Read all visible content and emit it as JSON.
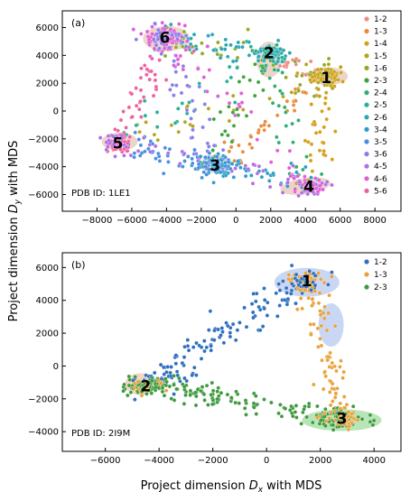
{
  "chart_data": [
    {
      "type": "scatter",
      "panel_label": "(a)",
      "annotation": "PDB ID: 1LE1",
      "xlim": [
        -10000,
        9500
      ],
      "ylim": [
        -7200,
        7200
      ],
      "xticks": [
        -8000,
        -6000,
        -4000,
        -2000,
        0,
        2000,
        4000,
        6000,
        8000
      ],
      "yticks": [
        -6000,
        -4000,
        -2000,
        0,
        2000,
        4000,
        6000
      ],
      "xtick_labels": [
        "−8000",
        "−6000",
        "−4000",
        "−2000",
        "0",
        "2000",
        "4000",
        "6000",
        "8000"
      ],
      "ytick_labels": [
        "−6000",
        "−4000",
        "−2000",
        "0",
        "2000",
        "4000",
        "6000"
      ],
      "grid": false,
      "legend_position": "right",
      "series": [
        {
          "name": "1-2",
          "color": "#f08a8a"
        },
        {
          "name": "1-3",
          "color": "#e98b3a"
        },
        {
          "name": "1-4",
          "color": "#d4a017"
        },
        {
          "name": "1-5",
          "color": "#b5a51d"
        },
        {
          "name": "1-6",
          "color": "#8fac22"
        },
        {
          "name": "2-3",
          "color": "#3aa63a"
        },
        {
          "name": "2-4",
          "color": "#2fae6f"
        },
        {
          "name": "2-5",
          "color": "#29b09a"
        },
        {
          "name": "2-6",
          "color": "#2aa8b5"
        },
        {
          "name": "3-4",
          "color": "#2c9ec9"
        },
        {
          "name": "3-5",
          "color": "#4a8fe0"
        },
        {
          "name": "3-6",
          "color": "#8b7ee8"
        },
        {
          "name": "4-5",
          "color": "#b36ee6"
        },
        {
          "name": "4-6",
          "color": "#e05fd6"
        },
        {
          "name": "5-6",
          "color": "#f0609e"
        }
      ],
      "clusters": [
        {
          "label": "1",
          "x": 5200,
          "y": 2400
        },
        {
          "label": "2",
          "x": 1900,
          "y": 4200
        },
        {
          "label": "3",
          "x": -1200,
          "y": -3900
        },
        {
          "label": "4",
          "x": 4200,
          "y": -5400
        },
        {
          "label": "5",
          "x": -6800,
          "y": -2300
        },
        {
          "label": "6",
          "x": -4100,
          "y": 5300
        }
      ]
    },
    {
      "type": "scatter",
      "panel_label": "(b)",
      "annotation": "PDB ID: 2I9M",
      "xlim": [
        -7600,
        5000
      ],
      "ylim": [
        -5200,
        6900
      ],
      "xticks": [
        -6000,
        -4000,
        -2000,
        0,
        2000,
        4000
      ],
      "yticks": [
        -4000,
        -2000,
        0,
        2000,
        4000,
        6000
      ],
      "xtick_labels": [
        "−6000",
        "−4000",
        "−2000",
        "0",
        "2000",
        "4000"
      ],
      "ytick_labels": [
        "−4000",
        "−2000",
        "0",
        "2000",
        "4000",
        "6000"
      ],
      "grid": false,
      "legend_position": "top-right",
      "series": [
        {
          "name": "1-2",
          "color": "#2f6fbf"
        },
        {
          "name": "1-3",
          "color": "#e8a33d"
        },
        {
          "name": "2-3",
          "color": "#3e9a3e"
        }
      ],
      "clusters": [
        {
          "label": "1",
          "x": 1500,
          "y": 5200
        },
        {
          "label": "2",
          "x": -4500,
          "y": -1200
        },
        {
          "label": "3",
          "x": 2800,
          "y": -3200
        }
      ]
    }
  ],
  "xlabel_main": "Project dimension",
  "xlabel_sym": "D",
  "xlabel_sub": "x",
  "xlabel_tail": " with MDS",
  "ylabel_main": "Project dimension",
  "ylabel_sym": "D",
  "ylabel_sub": "y",
  "ylabel_tail": " with MDS"
}
